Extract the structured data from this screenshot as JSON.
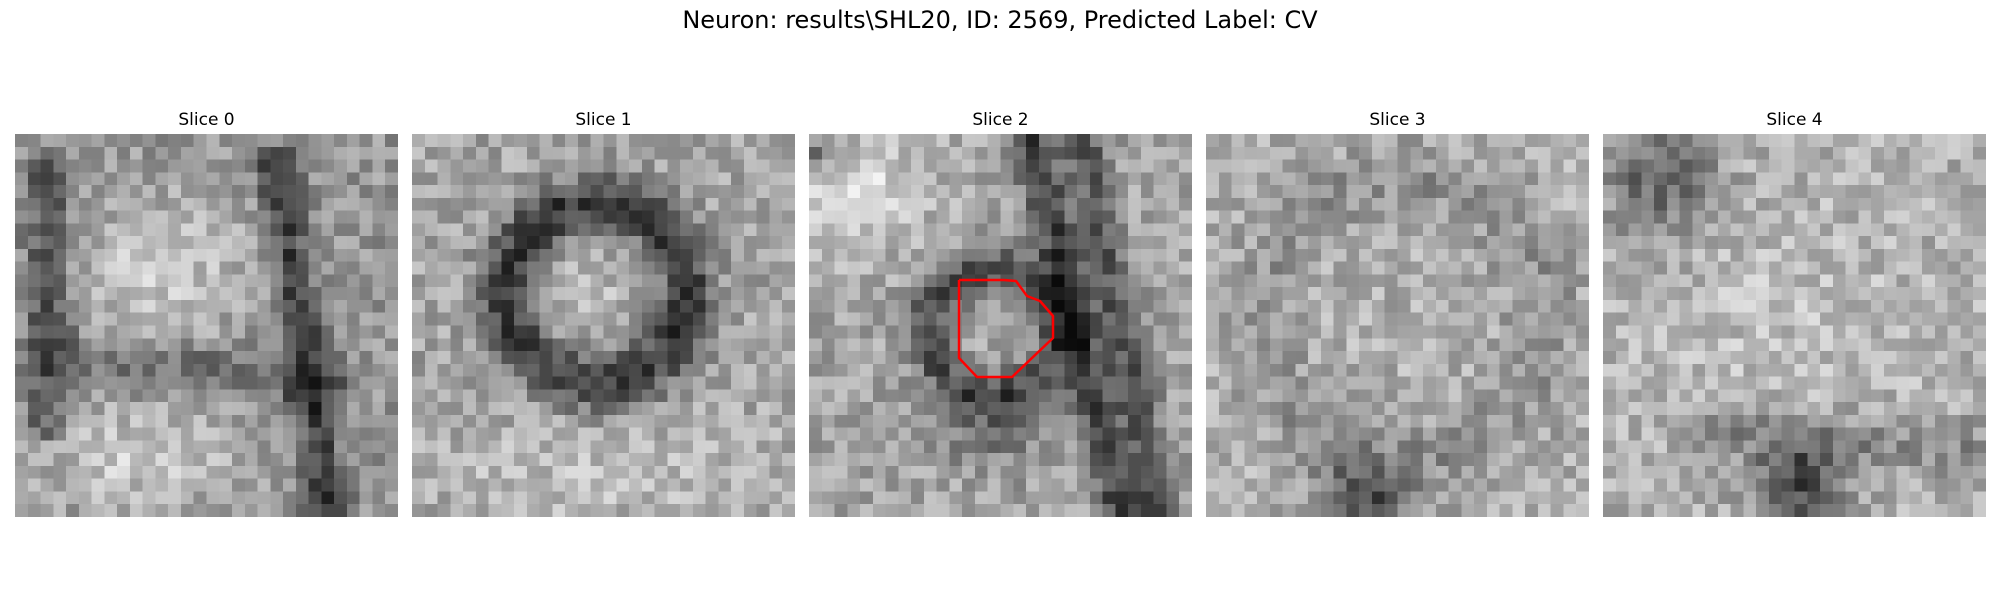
{
  "figure": {
    "title": "Neuron: results\\SHL20, ID: 2569, Predicted Label: CV"
  },
  "slices": [
    {
      "title": "Slice 0",
      "index": 0,
      "has_contour": false
    },
    {
      "title": "Slice 1",
      "index": 1,
      "has_contour": false
    },
    {
      "title": "Slice 2",
      "index": 2,
      "has_contour": true
    },
    {
      "title": "Slice 3",
      "index": 3,
      "has_contour": false
    },
    {
      "title": "Slice 4",
      "index": 4,
      "has_contour": false
    }
  ],
  "colors": {
    "contour": "#ff0000"
  }
}
